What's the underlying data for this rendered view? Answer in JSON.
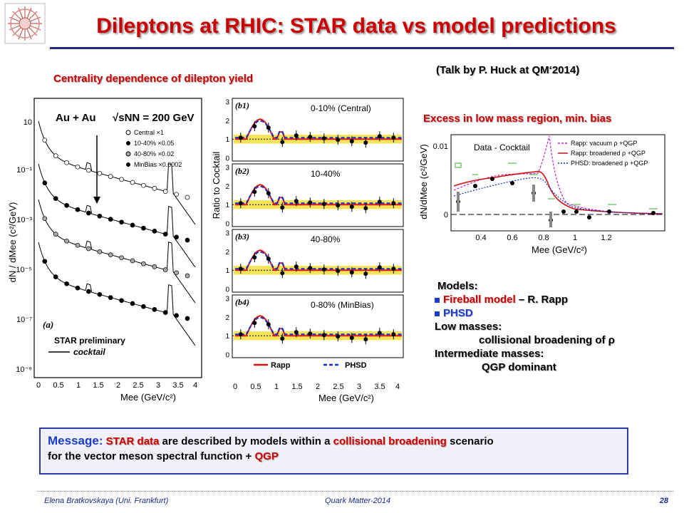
{
  "header": {
    "title": "Dileptons at RHIC: STAR data vs model predictions"
  },
  "subtitles": {
    "left": "Centrality dependence of dilepton yield",
    "talk": "(Talk by P. Huck at QM‘2014)",
    "right": "Excess in low mass region, min. bias"
  },
  "left_figure": {
    "ylabel": "dN / dMee (c²/GeV)",
    "xlabel": "Mee (GeV/c²)",
    "system": "Au + Au",
    "energy": "√sNN = 200 GeV",
    "legend": [
      "Central ×1",
      "10-40% ×0.05",
      "40-80% ×0.02",
      "MinBias ×0.0002"
    ],
    "panel_tag": "(a)",
    "prelim": "STAR preliminary",
    "cocktail": "cocktail",
    "y_ticks": [
      "10",
      "10⁻¹",
      "10⁻³",
      "10⁻⁵",
      "10⁻⁷",
      "10⁻⁹"
    ],
    "x_ticks": [
      "0",
      "0.5",
      "1",
      "1.5",
      "2",
      "2.5",
      "3",
      "3.5",
      "4"
    ]
  },
  "mid_figure": {
    "ylabel": "Ratio to Cocktail",
    "xlabel": "Mee (GeV/c²)",
    "panels": [
      {
        "tag": "(b1)",
        "label": "0-10% (Central)"
      },
      {
        "tag": "(b2)",
        "label": "10-40%"
      },
      {
        "tag": "(b3)",
        "label": "40-80%"
      },
      {
        "tag": "(b4)",
        "label": "0-80% (MinBias)"
      }
    ],
    "y_ticks": [
      "0",
      "1",
      "2",
      "3"
    ],
    "x_ticks": [
      "0",
      "0.5",
      "1",
      "1.5",
      "2",
      "2.5",
      "3",
      "3.5",
      "4"
    ],
    "legend_rapp": "Rapp",
    "legend_phsd": "PHSD"
  },
  "right_figure": {
    "ylabel": "dN/dMee (c²/GeV)",
    "xlabel": "Mee (GeV/c²)",
    "inner_label": "Data - Cocktail",
    "legend": [
      "Rapp: vacuum ρ +QGP",
      "Rapp: broadened ρ +QGP",
      "PHSD: broadened ρ +QGP"
    ],
    "y_ticks": [
      "0.01",
      "0"
    ],
    "x_ticks": [
      "0.4",
      "0.6",
      "0.8",
      "1",
      "1.2"
    ]
  },
  "models": {
    "heading": "Models:",
    "item1_red": "Fireball model",
    "item1_rest": " – R. Rapp",
    "item2": "PHSD",
    "low_heading": "Low masses:",
    "low_text": "collisional broadening of ρ",
    "int_heading": "Intermediate masses:",
    "int_text": "QGP dominant"
  },
  "message": {
    "head": "Message:",
    "red1": "STAR data",
    "text1": " are described by models within a ",
    "red2": "collisional broadening",
    "text2": " scenario",
    "text3": "for the vector meson spectral function + ",
    "red3": "QGP"
  },
  "footer": {
    "author": "Elena Bratkovskaya (Uni. Frankfurt)",
    "conference": "Quark Matter-2014",
    "page": "28"
  },
  "colors": {
    "title": "#cc0000",
    "rule": "#1f2a8c",
    "rapp": "#e01010",
    "phsd": "#1030d0",
    "band": "#f5e35a"
  }
}
